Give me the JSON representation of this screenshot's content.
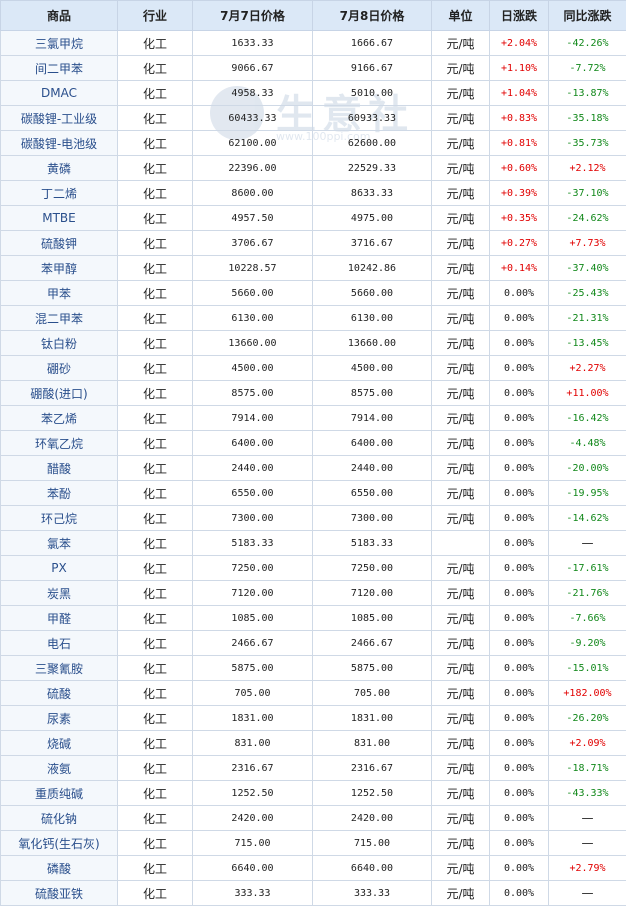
{
  "header": {
    "product": "商品",
    "industry": "行业",
    "price_jul7": "7月7日价格",
    "price_jul8": "7月8日价格",
    "unit": "单位",
    "daily_change": "日涨跌",
    "yoy_change": "同比涨跌"
  },
  "watermark": {
    "text": "生意社",
    "url": "www.100ppi.com"
  },
  "rows": [
    {
      "name": "三氯甲烷",
      "industry": "化工",
      "p1": "1633.33",
      "p2": "1666.67",
      "unit": "元/吨",
      "day": "+2.04%",
      "yoy": "-42.26%"
    },
    {
      "name": "间二甲苯",
      "industry": "化工",
      "p1": "9066.67",
      "p2": "9166.67",
      "unit": "元/吨",
      "day": "+1.10%",
      "yoy": "-7.72%"
    },
    {
      "name": "DMAC",
      "industry": "化工",
      "p1": "4958.33",
      "p2": "5010.00",
      "unit": "元/吨",
      "day": "+1.04%",
      "yoy": "-13.87%"
    },
    {
      "name": "碳酸锂-工业级",
      "industry": "化工",
      "p1": "60433.33",
      "p2": "60933.33",
      "unit": "元/吨",
      "day": "+0.83%",
      "yoy": "-35.18%"
    },
    {
      "name": "碳酸锂-电池级",
      "industry": "化工",
      "p1": "62100.00",
      "p2": "62600.00",
      "unit": "元/吨",
      "day": "+0.81%",
      "yoy": "-35.73%"
    },
    {
      "name": "黄磷",
      "industry": "化工",
      "p1": "22396.00",
      "p2": "22529.33",
      "unit": "元/吨",
      "day": "+0.60%",
      "yoy": "+2.12%"
    },
    {
      "name": "丁二烯",
      "industry": "化工",
      "p1": "8600.00",
      "p2": "8633.33",
      "unit": "元/吨",
      "day": "+0.39%",
      "yoy": "-37.10%"
    },
    {
      "name": "MTBE",
      "industry": "化工",
      "p1": "4957.50",
      "p2": "4975.00",
      "unit": "元/吨",
      "day": "+0.35%",
      "yoy": "-24.62%"
    },
    {
      "name": "硫酸钾",
      "industry": "化工",
      "p1": "3706.67",
      "p2": "3716.67",
      "unit": "元/吨",
      "day": "+0.27%",
      "yoy": "+7.73%"
    },
    {
      "name": "苯甲醇",
      "industry": "化工",
      "p1": "10228.57",
      "p2": "10242.86",
      "unit": "元/吨",
      "day": "+0.14%",
      "yoy": "-37.40%"
    },
    {
      "name": "甲苯",
      "industry": "化工",
      "p1": "5660.00",
      "p2": "5660.00",
      "unit": "元/吨",
      "day": "0.00%",
      "yoy": "-25.43%"
    },
    {
      "name": "混二甲苯",
      "industry": "化工",
      "p1": "6130.00",
      "p2": "6130.00",
      "unit": "元/吨",
      "day": "0.00%",
      "yoy": "-21.31%"
    },
    {
      "name": "钛白粉",
      "industry": "化工",
      "p1": "13660.00",
      "p2": "13660.00",
      "unit": "元/吨",
      "day": "0.00%",
      "yoy": "-13.45%"
    },
    {
      "name": "硼砂",
      "industry": "化工",
      "p1": "4500.00",
      "p2": "4500.00",
      "unit": "元/吨",
      "day": "0.00%",
      "yoy": "+2.27%"
    },
    {
      "name": "硼酸(进口)",
      "industry": "化工",
      "p1": "8575.00",
      "p2": "8575.00",
      "unit": "元/吨",
      "day": "0.00%",
      "yoy": "+11.00%"
    },
    {
      "name": "苯乙烯",
      "industry": "化工",
      "p1": "7914.00",
      "p2": "7914.00",
      "unit": "元/吨",
      "day": "0.00%",
      "yoy": "-16.42%"
    },
    {
      "name": "环氧乙烷",
      "industry": "化工",
      "p1": "6400.00",
      "p2": "6400.00",
      "unit": "元/吨",
      "day": "0.00%",
      "yoy": "-4.48%"
    },
    {
      "name": "醋酸",
      "industry": "化工",
      "p1": "2440.00",
      "p2": "2440.00",
      "unit": "元/吨",
      "day": "0.00%",
      "yoy": "-20.00%"
    },
    {
      "name": "苯酚",
      "industry": "化工",
      "p1": "6550.00",
      "p2": "6550.00",
      "unit": "元/吨",
      "day": "0.00%",
      "yoy": "-19.95%"
    },
    {
      "name": "环己烷",
      "industry": "化工",
      "p1": "7300.00",
      "p2": "7300.00",
      "unit": "元/吨",
      "day": "0.00%",
      "yoy": "-14.62%"
    },
    {
      "name": "氯苯",
      "industry": "化工",
      "p1": "5183.33",
      "p2": "5183.33",
      "unit": "",
      "day": "0.00%",
      "yoy": "—"
    },
    {
      "name": "PX",
      "industry": "化工",
      "p1": "7250.00",
      "p2": "7250.00",
      "unit": "元/吨",
      "day": "0.00%",
      "yoy": "-17.61%"
    },
    {
      "name": "炭黑",
      "industry": "化工",
      "p1": "7120.00",
      "p2": "7120.00",
      "unit": "元/吨",
      "day": "0.00%",
      "yoy": "-21.76%"
    },
    {
      "name": "甲醛",
      "industry": "化工",
      "p1": "1085.00",
      "p2": "1085.00",
      "unit": "元/吨",
      "day": "0.00%",
      "yoy": "-7.66%"
    },
    {
      "name": "电石",
      "industry": "化工",
      "p1": "2466.67",
      "p2": "2466.67",
      "unit": "元/吨",
      "day": "0.00%",
      "yoy": "-9.20%"
    },
    {
      "name": "三聚氰胺",
      "industry": "化工",
      "p1": "5875.00",
      "p2": "5875.00",
      "unit": "元/吨",
      "day": "0.00%",
      "yoy": "-15.01%"
    },
    {
      "name": "硫酸",
      "industry": "化工",
      "p1": "705.00",
      "p2": "705.00",
      "unit": "元/吨",
      "day": "0.00%",
      "yoy": "+182.00%"
    },
    {
      "name": "尿素",
      "industry": "化工",
      "p1": "1831.00",
      "p2": "1831.00",
      "unit": "元/吨",
      "day": "0.00%",
      "yoy": "-26.20%"
    },
    {
      "name": "烧碱",
      "industry": "化工",
      "p1": "831.00",
      "p2": "831.00",
      "unit": "元/吨",
      "day": "0.00%",
      "yoy": "+2.09%"
    },
    {
      "name": "液氨",
      "industry": "化工",
      "p1": "2316.67",
      "p2": "2316.67",
      "unit": "元/吨",
      "day": "0.00%",
      "yoy": "-18.71%"
    },
    {
      "name": "重质纯碱",
      "industry": "化工",
      "p1": "1252.50",
      "p2": "1252.50",
      "unit": "元/吨",
      "day": "0.00%",
      "yoy": "-43.33%"
    },
    {
      "name": "硫化钠",
      "industry": "化工",
      "p1": "2420.00",
      "p2": "2420.00",
      "unit": "元/吨",
      "day": "0.00%",
      "yoy": "—"
    },
    {
      "name": "氧化钙(生石灰)",
      "industry": "化工",
      "p1": "715.00",
      "p2": "715.00",
      "unit": "元/吨",
      "day": "0.00%",
      "yoy": "—"
    },
    {
      "name": "磷酸",
      "industry": "化工",
      "p1": "6640.00",
      "p2": "6640.00",
      "unit": "元/吨",
      "day": "0.00%",
      "yoy": "+2.79%"
    },
    {
      "name": "硫酸亚铁",
      "industry": "化工",
      "p1": "333.33",
      "p2": "333.33",
      "unit": "元/吨",
      "day": "0.00%",
      "yoy": "—"
    }
  ],
  "colors": {
    "header_bg": "#dbe8f7",
    "up": "#e10000",
    "down": "#11881a",
    "name_text": "#2a4f8c"
  }
}
